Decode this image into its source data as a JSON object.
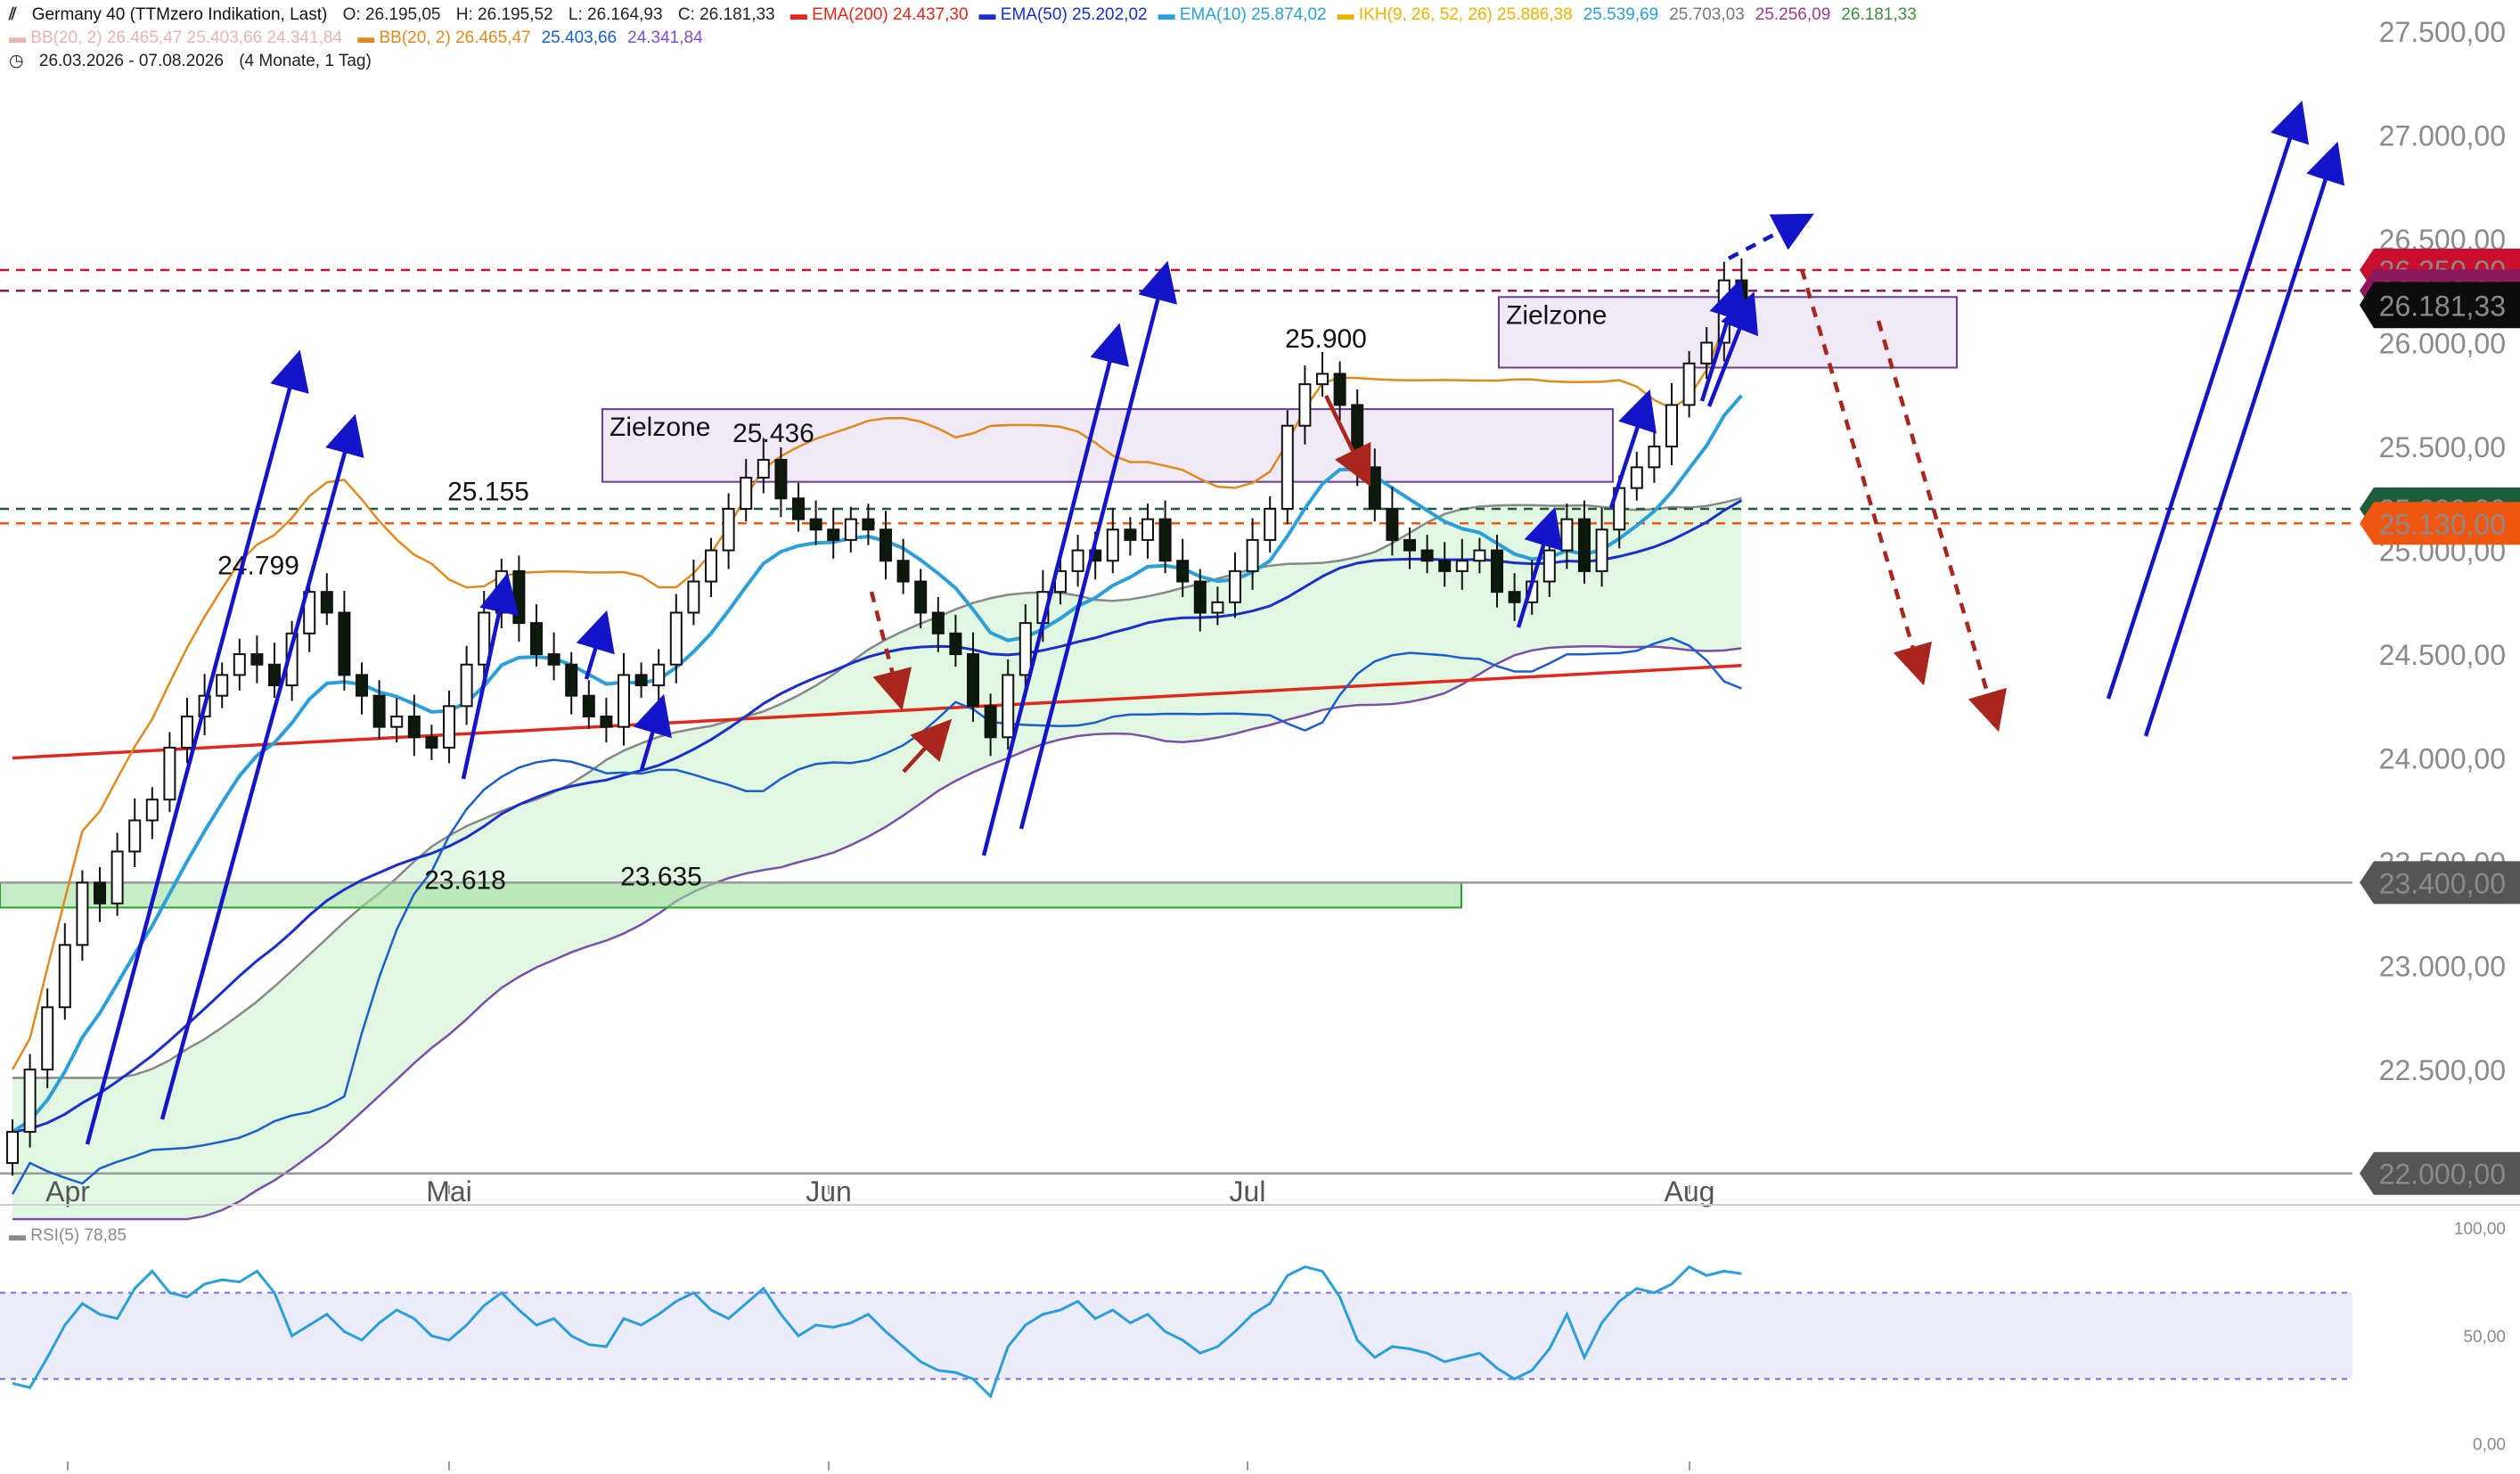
{
  "header": {
    "title": "Germany 40 (TTMzero Indikation, Last)",
    "ohlc": {
      "o": "O: 26.195,05",
      "h": "H: 26.195,52",
      "l": "L: 26.164,93",
      "c": "C: 26.181,33"
    },
    "indicators_row1": [
      {
        "label": "EMA(200)",
        "value": "24.437,30",
        "color": "#e0281c"
      },
      {
        "label": "EMA(50)",
        "value": "25.202,02",
        "color": "#1a2fc9"
      },
      {
        "label": "EMA(10)",
        "value": "25.874,02",
        "color": "#2a9fd8"
      },
      {
        "label": "IKH(9, 26, 52, 26)",
        "value": "25.886,38",
        "color": "#e8b400"
      }
    ],
    "ikh_values": [
      "25.539,69",
      "25.703,03",
      "25.256,09",
      "26.181,33"
    ],
    "ikh_colors": [
      "#2a9fd8",
      "#777777",
      "#9a3b8c",
      "#3c8f3c"
    ],
    "bb_faded": {
      "label": "BB(20, 2)",
      "values": [
        "26.465,47",
        "25.403,66",
        "24.341,84"
      ],
      "color": "#e6b4b4"
    },
    "bb_main": {
      "label": "BB(20, 2)",
      "values": [
        "26.465,47",
        "25.403,66",
        "24.341,84"
      ],
      "colors": [
        "#e08a1e",
        "#e08a1e",
        "#1a5fc9",
        "#7b4fc9"
      ]
    },
    "date_range": "26.03.2026 - 07.08.2026",
    "range_info": "(4 Monate, 1 Tag)"
  },
  "chart_data": {
    "type": "candlestick",
    "title": "Germany 40 (TTMzero Indikation, Last)",
    "period": "26.03.2026 - 07.08.2026",
    "y_axis": {
      "ylim": [
        21900,
        27650
      ],
      "ticks": [
        22000,
        22500,
        23000,
        23500,
        24000,
        24500,
        25000,
        25500,
        26000,
        26500,
        27000,
        27500
      ],
      "tick_labels": [
        "22.000,00",
        "22.500,00",
        "23.000,00",
        "23.500,00",
        "24.000,00",
        "24.500,00",
        "25.000,00",
        "25.500,00",
        "26.000,00",
        "26.500,00",
        "27.000,00",
        "27.500,00"
      ]
    },
    "x_axis": {
      "months": [
        "Apr",
        "Mai",
        "Jun",
        "Jul",
        "Aug"
      ]
    },
    "last_candle": {
      "open": 26195.05,
      "high": 26195.52,
      "low": 26164.93,
      "close": 26181.33
    },
    "closes": [
      22200,
      22500,
      22800,
      23100,
      23400,
      23300,
      23550,
      23700,
      23800,
      24050,
      24200,
      24300,
      24400,
      24500,
      24450,
      24350,
      24600,
      24800,
      24700,
      24400,
      24300,
      24150,
      24200,
      24100,
      24050,
      24250,
      24450,
      24700,
      24900,
      24650,
      24500,
      24450,
      24300,
      24200,
      24150,
      24400,
      24350,
      24450,
      24700,
      24850,
      25000,
      25200,
      25350,
      25436,
      25250,
      25150,
      25100,
      25050,
      25150,
      25100,
      24950,
      24850,
      24700,
      24600,
      24500,
      24250,
      24100,
      24400,
      24650,
      24800,
      24900,
      25000,
      24950,
      25100,
      25050,
      25150,
      24950,
      24850,
      24700,
      24750,
      24900,
      25050,
      25200,
      25600,
      25800,
      25850,
      25700,
      25400,
      25200,
      25050,
      25000,
      24950,
      24900,
      24950,
      25000,
      24800,
      24750,
      24850,
      25000,
      25150,
      24900,
      25100,
      25300,
      25400,
      25500,
      25700,
      25900,
      26000,
      26300,
      26181.33
    ],
    "annotations": {
      "swing_labels": [
        {
          "text": "24.799",
          "value": 24799
        },
        {
          "text": "25.155",
          "value": 25155
        },
        {
          "text": "25.436",
          "value": 25436
        },
        {
          "text": "25.900",
          "value": 25900
        },
        {
          "text": "23.618",
          "value": 23618
        },
        {
          "text": "23.635",
          "value": 23635
        }
      ],
      "zones": [
        {
          "text": "Zielzone",
          "from": 25330,
          "to": 25680
        },
        {
          "text": "Zielzone",
          "from": 25880,
          "to": 26220
        }
      ],
      "support_zone": {
        "from": 23280,
        "to": 23400
      },
      "horizontal_levels": [
        {
          "value": 26350,
          "label": "26.350,00",
          "color": "#c8102e",
          "style": "dashed"
        },
        {
          "value": 26250,
          "label": "26.250,00",
          "color": "#8b1a5c",
          "style": "dashed"
        },
        {
          "value": 25200,
          "label": "25.200,00",
          "color": "#1c5c3a",
          "style": "dashed"
        },
        {
          "value": 25130,
          "label": "25.130,00",
          "color": "#f0560f",
          "style": "dashed"
        },
        {
          "value": 23400,
          "label": "23.400,00",
          "color": "#9a9a9a",
          "style": "solid"
        },
        {
          "value": 22000,
          "label": "22.000,00",
          "color": "#9a9a9a",
          "style": "solid"
        }
      ],
      "last_price_label": "26.181,33"
    },
    "rsi": {
      "label": "RSI(5)",
      "value": "78,85",
      "ylim": [
        0,
        100
      ],
      "ticks": [
        0,
        50,
        100
      ],
      "tick_labels": [
        "0,00",
        "50,00",
        "100,00"
      ],
      "bands": [
        30,
        70
      ],
      "values": [
        28,
        26,
        40,
        55,
        65,
        60,
        58,
        72,
        80,
        70,
        68,
        74,
        76,
        75,
        80,
        70,
        50,
        55,
        60,
        52,
        48,
        56,
        62,
        58,
        50,
        48,
        55,
        64,
        70,
        62,
        55,
        58,
        50,
        46,
        45,
        58,
        55,
        60,
        66,
        70,
        62,
        58,
        65,
        72,
        60,
        50,
        55,
        54,
        56,
        60,
        52,
        45,
        38,
        34,
        33,
        30,
        22,
        45,
        55,
        60,
        62,
        66,
        58,
        62,
        56,
        60,
        52,
        48,
        42,
        45,
        52,
        60,
        65,
        78,
        82,
        80,
        68,
        48,
        40,
        45,
        44,
        42,
        38,
        40,
        42,
        35,
        30,
        34,
        44,
        60,
        40,
        56,
        66,
        72,
        70,
        74,
        82,
        78,
        80,
        78.85
      ]
    }
  }
}
